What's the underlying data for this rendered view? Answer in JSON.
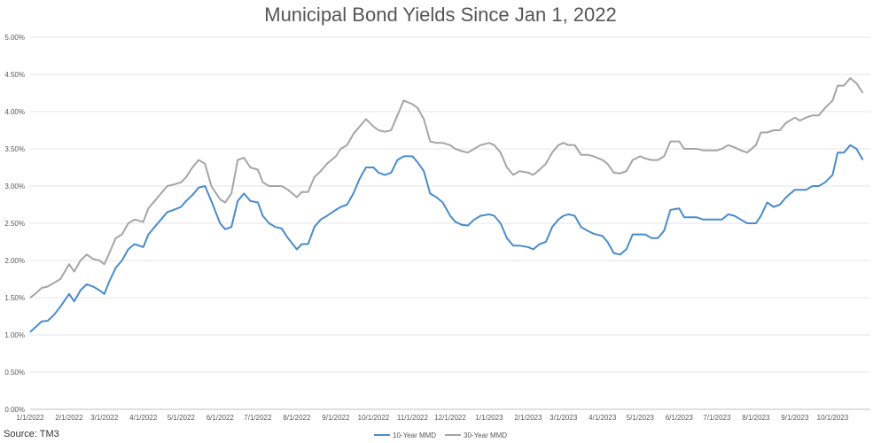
{
  "title": "Municipal Bond Yields Since Jan 1, 2022",
  "source": "Source: TM3",
  "colors": {
    "series1": "#4a8cca",
    "series2": "#a5a5a5",
    "grid": "#e6e6e6"
  },
  "chart_data": {
    "type": "line",
    "title": "Municipal Bond Yields Since Jan 1, 2022",
    "xlabel": "",
    "ylabel": "",
    "grid": true,
    "legend_position": "bottom",
    "ylim": [
      0,
      5
    ],
    "xlim": [
      "2022-01-01",
      "2023-10-31"
    ],
    "y_ticks": [
      "0.00%",
      "0.50%",
      "1.00%",
      "1.50%",
      "2.00%",
      "2.50%",
      "3.00%",
      "3.50%",
      "4.00%",
      "4.50%",
      "5.00%"
    ],
    "x_ticks": [
      {
        "date": "2022-01-01",
        "label": "1/1/2022"
      },
      {
        "date": "2022-02-01",
        "label": "2/1/2022"
      },
      {
        "date": "2022-03-01",
        "label": "3/1/2022"
      },
      {
        "date": "2022-04-01",
        "label": "4/1/2022"
      },
      {
        "date": "2022-05-01",
        "label": "5/1/2022"
      },
      {
        "date": "2022-06-01",
        "label": "6/1/2022"
      },
      {
        "date": "2022-07-01",
        "label": "7/1/2022"
      },
      {
        "date": "2022-08-01",
        "label": "8/1/2022"
      },
      {
        "date": "2022-09-01",
        "label": "9/1/2022"
      },
      {
        "date": "2022-10-01",
        "label": "10/1/2022"
      },
      {
        "date": "2022-11-01",
        "label": "11/1/2022"
      },
      {
        "date": "2022-12-01",
        "label": "12/1/2022"
      },
      {
        "date": "2023-01-01",
        "label": "1/1/2023"
      },
      {
        "date": "2023-02-01",
        "label": "2/1/2023"
      },
      {
        "date": "2023-03-01",
        "label": "3/1/2023"
      },
      {
        "date": "2023-04-01",
        "label": "4/1/2023"
      },
      {
        "date": "2023-05-01",
        "label": "5/1/2023"
      },
      {
        "date": "2023-06-01",
        "label": "6/1/2023"
      },
      {
        "date": "2023-07-01",
        "label": "7/1/2023"
      },
      {
        "date": "2023-08-01",
        "label": "8/1/2023"
      },
      {
        "date": "2023-09-01",
        "label": "9/1/2023"
      },
      {
        "date": "2023-10-01",
        "label": "10/1/2023"
      }
    ],
    "series": [
      {
        "name": "10-Year MMD",
        "x": [
          "2022-01-01",
          "2022-01-05",
          "2022-01-10",
          "2022-01-15",
          "2022-01-20",
          "2022-01-25",
          "2022-02-01",
          "2022-02-05",
          "2022-02-10",
          "2022-02-15",
          "2022-02-20",
          "2022-02-25",
          "2022-03-01",
          "2022-03-05",
          "2022-03-10",
          "2022-03-15",
          "2022-03-20",
          "2022-03-25",
          "2022-04-01",
          "2022-04-05",
          "2022-04-10",
          "2022-04-15",
          "2022-04-20",
          "2022-04-25",
          "2022-05-01",
          "2022-05-05",
          "2022-05-10",
          "2022-05-15",
          "2022-05-20",
          "2022-05-25",
          "2022-06-01",
          "2022-06-05",
          "2022-06-10",
          "2022-06-15",
          "2022-06-20",
          "2022-06-25",
          "2022-07-01",
          "2022-07-05",
          "2022-07-10",
          "2022-07-15",
          "2022-07-20",
          "2022-07-25",
          "2022-08-01",
          "2022-08-05",
          "2022-08-10",
          "2022-08-15",
          "2022-08-20",
          "2022-08-25",
          "2022-09-01",
          "2022-09-05",
          "2022-09-10",
          "2022-09-15",
          "2022-09-20",
          "2022-09-25",
          "2022-10-01",
          "2022-10-05",
          "2022-10-10",
          "2022-10-15",
          "2022-10-20",
          "2022-10-25",
          "2022-11-01",
          "2022-11-05",
          "2022-11-10",
          "2022-11-15",
          "2022-11-20",
          "2022-11-25",
          "2022-12-01",
          "2022-12-05",
          "2022-12-10",
          "2022-12-15",
          "2022-12-20",
          "2022-12-25",
          "2023-01-01",
          "2023-01-05",
          "2023-01-10",
          "2023-01-15",
          "2023-01-20",
          "2023-01-25",
          "2023-02-01",
          "2023-02-05",
          "2023-02-10",
          "2023-02-15",
          "2023-02-20",
          "2023-02-25",
          "2023-03-01",
          "2023-03-05",
          "2023-03-10",
          "2023-03-15",
          "2023-03-20",
          "2023-03-25",
          "2023-04-01",
          "2023-04-05",
          "2023-04-10",
          "2023-04-15",
          "2023-04-20",
          "2023-04-25",
          "2023-05-01",
          "2023-05-05",
          "2023-05-10",
          "2023-05-15",
          "2023-05-20",
          "2023-05-25",
          "2023-06-01",
          "2023-06-05",
          "2023-06-10",
          "2023-06-15",
          "2023-06-20",
          "2023-06-25",
          "2023-07-01",
          "2023-07-05",
          "2023-07-10",
          "2023-07-15",
          "2023-07-20",
          "2023-07-25",
          "2023-08-01",
          "2023-08-05",
          "2023-08-10",
          "2023-08-15",
          "2023-08-20",
          "2023-08-25",
          "2023-09-01",
          "2023-09-05",
          "2023-09-10",
          "2023-09-15",
          "2023-09-20",
          "2023-09-25",
          "2023-10-01",
          "2023-10-05",
          "2023-10-10",
          "2023-10-15",
          "2023-10-20",
          "2023-10-25"
        ],
        "y": [
          1.04,
          1.1,
          1.18,
          1.19,
          1.27,
          1.38,
          1.55,
          1.45,
          1.6,
          1.68,
          1.65,
          1.6,
          1.55,
          1.72,
          1.9,
          2.0,
          2.15,
          2.22,
          2.18,
          2.35,
          2.45,
          2.55,
          2.65,
          2.68,
          2.72,
          2.8,
          2.88,
          2.98,
          3.0,
          2.8,
          2.5,
          2.42,
          2.45,
          2.8,
          2.9,
          2.8,
          2.78,
          2.6,
          2.5,
          2.45,
          2.43,
          2.3,
          2.15,
          2.22,
          2.22,
          2.45,
          2.55,
          2.6,
          2.68,
          2.72,
          2.75,
          2.9,
          3.1,
          3.25,
          3.25,
          3.18,
          3.15,
          3.18,
          3.35,
          3.4,
          3.4,
          3.32,
          3.2,
          2.9,
          2.85,
          2.78,
          2.6,
          2.52,
          2.48,
          2.47,
          2.55,
          2.6,
          2.62,
          2.6,
          2.5,
          2.3,
          2.2,
          2.2,
          2.18,
          2.15,
          2.22,
          2.25,
          2.45,
          2.55,
          2.6,
          2.62,
          2.6,
          2.45,
          2.4,
          2.36,
          2.33,
          2.25,
          2.1,
          2.08,
          2.15,
          2.35,
          2.35,
          2.35,
          2.3,
          2.3,
          2.4,
          2.68,
          2.7,
          2.58,
          2.58,
          2.58,
          2.55,
          2.55,
          2.55,
          2.55,
          2.62,
          2.6,
          2.55,
          2.5,
          2.5,
          2.6,
          2.78,
          2.72,
          2.75,
          2.85,
          2.95,
          2.95,
          2.95,
          3.0,
          3.0,
          3.05,
          3.15,
          3.45,
          3.45,
          3.55,
          3.5,
          3.35
        ]
      },
      {
        "name": "30-Year MMD",
        "x": [
          "2022-01-01",
          "2022-01-05",
          "2022-01-10",
          "2022-01-15",
          "2022-01-20",
          "2022-01-25",
          "2022-02-01",
          "2022-02-05",
          "2022-02-10",
          "2022-02-15",
          "2022-02-20",
          "2022-02-25",
          "2022-03-01",
          "2022-03-05",
          "2022-03-10",
          "2022-03-15",
          "2022-03-20",
          "2022-03-25",
          "2022-04-01",
          "2022-04-05",
          "2022-04-10",
          "2022-04-15",
          "2022-04-20",
          "2022-04-25",
          "2022-05-01",
          "2022-05-05",
          "2022-05-10",
          "2022-05-15",
          "2022-05-20",
          "2022-05-25",
          "2022-06-01",
          "2022-06-05",
          "2022-06-10",
          "2022-06-15",
          "2022-06-20",
          "2022-06-25",
          "2022-07-01",
          "2022-07-05",
          "2022-07-10",
          "2022-07-15",
          "2022-07-20",
          "2022-07-25",
          "2022-08-01",
          "2022-08-05",
          "2022-08-10",
          "2022-08-15",
          "2022-08-20",
          "2022-08-25",
          "2022-09-01",
          "2022-09-05",
          "2022-09-10",
          "2022-09-15",
          "2022-09-20",
          "2022-09-25",
          "2022-10-01",
          "2022-10-05",
          "2022-10-10",
          "2022-10-15",
          "2022-10-20",
          "2022-10-25",
          "2022-11-01",
          "2022-11-05",
          "2022-11-10",
          "2022-11-15",
          "2022-11-20",
          "2022-11-25",
          "2022-12-01",
          "2022-12-05",
          "2022-12-10",
          "2022-12-15",
          "2022-12-20",
          "2022-12-25",
          "2023-01-01",
          "2023-01-05",
          "2023-01-10",
          "2023-01-15",
          "2023-01-20",
          "2023-01-25",
          "2023-02-01",
          "2023-02-05",
          "2023-02-10",
          "2023-02-15",
          "2023-02-20",
          "2023-02-25",
          "2023-03-01",
          "2023-03-05",
          "2023-03-10",
          "2023-03-15",
          "2023-03-20",
          "2023-03-25",
          "2023-04-01",
          "2023-04-05",
          "2023-04-10",
          "2023-04-15",
          "2023-04-20",
          "2023-04-25",
          "2023-05-01",
          "2023-05-05",
          "2023-05-10",
          "2023-05-15",
          "2023-05-20",
          "2023-05-25",
          "2023-06-01",
          "2023-06-05",
          "2023-06-10",
          "2023-06-15",
          "2023-06-20",
          "2023-06-25",
          "2023-07-01",
          "2023-07-05",
          "2023-07-10",
          "2023-07-15",
          "2023-07-20",
          "2023-07-25",
          "2023-08-01",
          "2023-08-05",
          "2023-08-10",
          "2023-08-15",
          "2023-08-20",
          "2023-08-25",
          "2023-09-01",
          "2023-09-05",
          "2023-09-10",
          "2023-09-15",
          "2023-09-20",
          "2023-09-25",
          "2023-10-01",
          "2023-10-05",
          "2023-10-10",
          "2023-10-15",
          "2023-10-20",
          "2023-10-25"
        ],
        "y": [
          1.5,
          1.55,
          1.63,
          1.65,
          1.7,
          1.75,
          1.95,
          1.85,
          2.0,
          2.08,
          2.02,
          2.0,
          1.95,
          2.1,
          2.3,
          2.35,
          2.5,
          2.55,
          2.52,
          2.7,
          2.8,
          2.9,
          3.0,
          3.02,
          3.05,
          3.12,
          3.25,
          3.35,
          3.3,
          3.0,
          2.82,
          2.78,
          2.9,
          3.35,
          3.38,
          3.25,
          3.22,
          3.05,
          3.0,
          3.0,
          3.0,
          2.95,
          2.85,
          2.92,
          2.92,
          3.12,
          3.2,
          3.3,
          3.4,
          3.5,
          3.55,
          3.7,
          3.8,
          3.9,
          3.8,
          3.75,
          3.73,
          3.75,
          3.95,
          4.15,
          4.1,
          4.05,
          3.9,
          3.6,
          3.58,
          3.58,
          3.55,
          3.5,
          3.47,
          3.45,
          3.5,
          3.55,
          3.58,
          3.55,
          3.45,
          3.25,
          3.15,
          3.2,
          3.18,
          3.15,
          3.22,
          3.3,
          3.45,
          3.55,
          3.58,
          3.55,
          3.55,
          3.42,
          3.42,
          3.4,
          3.35,
          3.3,
          3.18,
          3.17,
          3.2,
          3.35,
          3.4,
          3.37,
          3.35,
          3.35,
          3.4,
          3.6,
          3.6,
          3.5,
          3.5,
          3.5,
          3.48,
          3.48,
          3.48,
          3.5,
          3.55,
          3.52,
          3.48,
          3.45,
          3.55,
          3.72,
          3.72,
          3.75,
          3.75,
          3.85,
          3.92,
          3.88,
          3.92,
          3.95,
          3.95,
          4.05,
          4.15,
          4.35,
          4.35,
          4.45,
          4.38,
          4.25
        ]
      }
    ]
  }
}
